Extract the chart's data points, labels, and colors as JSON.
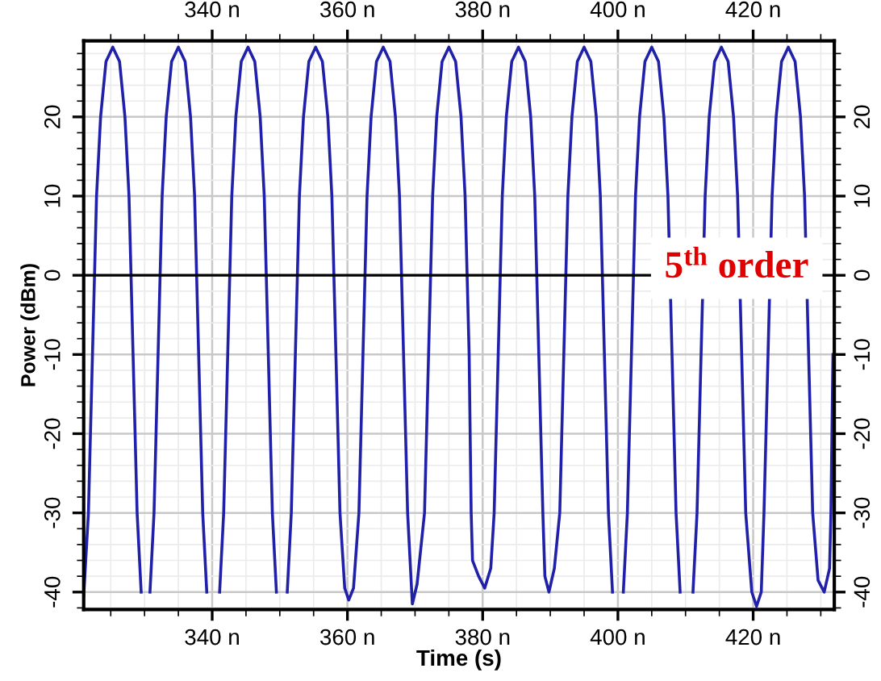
{
  "chart_data": {
    "type": "line",
    "xlabel": "Time (s)",
    "ylabel": "Power (dBm)",
    "annotations": [
      "5$^{th}$ order"
    ],
    "xlim": [
      321,
      432
    ],
    "ylim": [
      -42.2,
      29.6
    ],
    "xticks": [
      {
        "value": 340,
        "label": "340 n"
      },
      {
        "value": 360,
        "label": "360 n"
      },
      {
        "value": 380,
        "label": "380 n"
      },
      {
        "value": 400,
        "label": "400 n"
      },
      {
        "value": 420,
        "label": "420 n"
      }
    ],
    "x2lim": [
      321,
      432
    ],
    "x2ticks": [
      {
        "value": 340,
        "label": "340 n"
      },
      {
        "value": 360,
        "label": "360 n"
      },
      {
        "value": 380,
        "label": "380 n"
      },
      {
        "value": 400,
        "label": "400 n"
      },
      {
        "value": 420,
        "label": "420 n"
      }
    ],
    "yticks": [
      -40,
      -30,
      -20,
      -10,
      0,
      10,
      20
    ],
    "y2lim": [
      -42.2,
      29.6
    ],
    "y2ticks": [
      -40,
      -30,
      -20,
      -10,
      0,
      10,
      20
    ],
    "grid": true,
    "marker": "none",
    "line_style": "solid",
    "ref_lines": [
      {
        "axis": "y",
        "value": 0,
        "color": "#000000"
      }
    ],
    "series": [
      {
        "color": "#2020a8",
        "x": [
          321.0,
          321.7,
          322.3,
          322.9,
          323.5,
          324.3,
          325.3,
          326.3,
          327.1,
          327.7,
          328.3,
          328.9,
          329.5,
          330.0,
          330.8,
          331.4,
          332.0,
          332.6,
          333.2,
          334.0,
          335.0,
          336.0,
          336.8,
          337.4,
          338.0,
          338.6,
          339.2,
          340.0,
          341.1,
          341.7,
          342.3,
          342.9,
          343.5,
          344.3,
          345.3,
          346.3,
          347.1,
          347.7,
          348.3,
          348.9,
          349.5,
          350.0,
          351.1,
          351.7,
          352.3,
          352.9,
          353.5,
          354.3,
          355.3,
          356.3,
          357.1,
          357.7,
          358.3,
          358.9,
          359.6,
          360.2,
          360.9,
          361.7,
          362.3,
          362.9,
          363.5,
          364.3,
          365.3,
          366.3,
          367.1,
          367.7,
          368.3,
          368.9,
          369.6,
          370.3,
          371.4,
          372.0,
          372.6,
          373.2,
          374.0,
          375.0,
          376.0,
          376.8,
          377.4,
          378.0,
          378.3,
          378.5,
          379.4,
          380.3,
          381.2,
          381.7,
          382.3,
          382.9,
          383.5,
          384.3,
          385.3,
          386.3,
          387.1,
          387.7,
          388.3,
          388.9,
          389.2,
          389.8,
          390.6,
          391.4,
          392.0,
          392.6,
          393.2,
          394.0,
          395.0,
          396.0,
          396.8,
          397.4,
          398.0,
          398.6,
          399.2,
          400.0,
          400.8,
          401.4,
          402.0,
          402.6,
          403.2,
          404.0,
          405.0,
          406.0,
          406.8,
          407.4,
          408.0,
          408.6,
          409.2,
          410.0,
          411.1,
          411.7,
          412.3,
          412.9,
          413.5,
          414.3,
          415.3,
          416.3,
          417.1,
          417.7,
          418.3,
          418.9,
          419.8,
          420.5,
          421.2,
          421.6,
          422.2,
          422.8,
          423.4,
          424.2,
          425.2,
          426.2,
          427.0,
          427.6,
          428.2,
          428.8,
          429.6,
          430.5,
          431.3,
          431.5,
          431.8
        ],
        "values": [
          -40.5,
          -30,
          -10,
          10,
          20,
          27,
          28.8,
          27,
          20,
          10,
          -10,
          -30,
          -40,
          null,
          -40,
          -30,
          -10,
          10,
          20,
          27,
          28.8,
          27,
          20,
          10,
          -10,
          -30,
          -40,
          null,
          -40,
          -30,
          -10,
          10,
          20,
          27,
          28.8,
          27,
          20,
          10,
          -10,
          -30,
          -40,
          null,
          -40,
          -30,
          -10,
          10,
          20,
          27,
          28.8,
          27,
          20,
          10,
          -10,
          -30,
          -39.5,
          -41,
          -39.5,
          -30,
          -10,
          10,
          20,
          27,
          28.8,
          27,
          20,
          10,
          -10,
          -30,
          -41.5,
          -39,
          -30,
          -10,
          10,
          20,
          27,
          28.8,
          27,
          20,
          10,
          -10,
          -30,
          -36,
          -38,
          -39.5,
          -37,
          -30,
          -10,
          10,
          20,
          27,
          28.8,
          27,
          20,
          10,
          -10,
          -30,
          -38,
          -40,
          -37,
          -30,
          -10,
          10,
          20,
          27,
          28.8,
          27,
          20,
          10,
          -10,
          -30,
          -40,
          null,
          -40,
          -30,
          -10,
          10,
          20,
          27,
          28.8,
          27,
          20,
          10,
          -10,
          -30,
          -40,
          null,
          -40,
          -30,
          -10,
          10,
          20,
          27,
          28.8,
          27,
          20,
          10,
          -10,
          -30,
          -40,
          -41.8,
          -40,
          -30,
          -10,
          10,
          20,
          27,
          28.8,
          27,
          20,
          10,
          -10,
          -30,
          -38.5,
          -40,
          -37,
          -30,
          -10
        ]
      }
    ]
  }
}
